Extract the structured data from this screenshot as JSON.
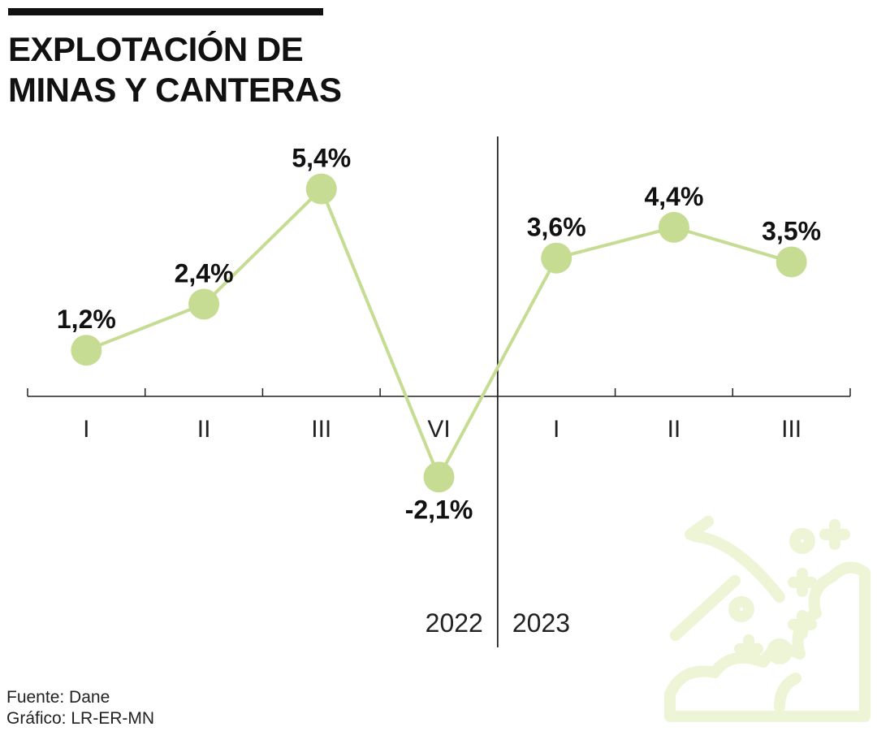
{
  "title_lines": [
    "EXPLOTACIÓN DE",
    "MINAS Y CANTERAS"
  ],
  "source_lines": [
    "Fuente: Dane",
    "Gráfico: LR-ER-MN"
  ],
  "icon": "pickaxe-mining-icon",
  "colors": {
    "line": "#c5dc92",
    "marker": "#c5dc92",
    "text": "#111111",
    "axis": "#222222",
    "icon": "#eef4d6"
  },
  "chart_data": {
    "type": "line",
    "title": "EXPLOTACIÓN DE MINAS Y CANTERAS",
    "categories": [
      "I",
      "II",
      "III",
      "VI",
      "I",
      "II",
      "III"
    ],
    "years": [
      {
        "label": "2022",
        "start_index": 0,
        "end_index": 3
      },
      {
        "label": "2023",
        "start_index": 4,
        "end_index": 6
      }
    ],
    "series": [
      {
        "values": [
          1.2,
          2.4,
          5.4,
          -2.1,
          3.6,
          4.4,
          3.5
        ]
      }
    ],
    "data_labels": [
      "1,2%",
      "2,4%",
      "5,4%",
      "-2,1%",
      "3,6%",
      "4,4%",
      "3,5%"
    ],
    "ylim": [
      -4.5,
      6.5
    ],
    "grid": false
  }
}
